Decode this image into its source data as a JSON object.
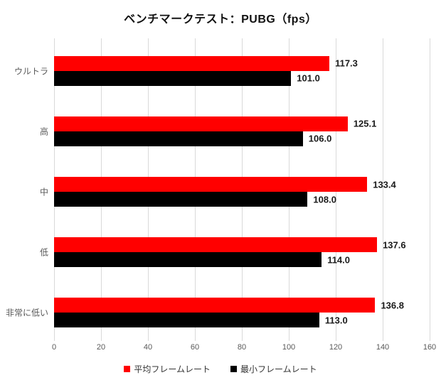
{
  "title": "ベンチマークテスト：PUBG（fps）",
  "chart_data": {
    "type": "bar",
    "orientation": "horizontal",
    "title": "ベンチマークテスト：PUBG（fps）",
    "categories": [
      "ウルトラ",
      "高",
      "中",
      "低",
      "非常に低い"
    ],
    "series": [
      {
        "name": "平均フレームレート",
        "color": "#ff0000",
        "values": [
          117.3,
          125.1,
          133.4,
          137.6,
          136.8
        ]
      },
      {
        "name": "最小フレームレート",
        "color": "#000000",
        "values": [
          101.0,
          106.0,
          108.0,
          114.0,
          113.0
        ]
      }
    ],
    "value_labels": {
      "平均フレームレート": [
        "117.3",
        "125.1",
        "133.4",
        "137.6",
        "136.8"
      ],
      "最小フレームレート": [
        "101.0",
        "106.0",
        "108.0",
        "114.0",
        "113.0"
      ]
    },
    "xlim": [
      0,
      160
    ],
    "xticks": [
      0,
      20,
      40,
      60,
      80,
      100,
      120,
      140,
      160
    ],
    "grid": true,
    "grid_color": "#d9d9d9",
    "legend_position": "bottom",
    "xlabel": "",
    "ylabel": ""
  }
}
